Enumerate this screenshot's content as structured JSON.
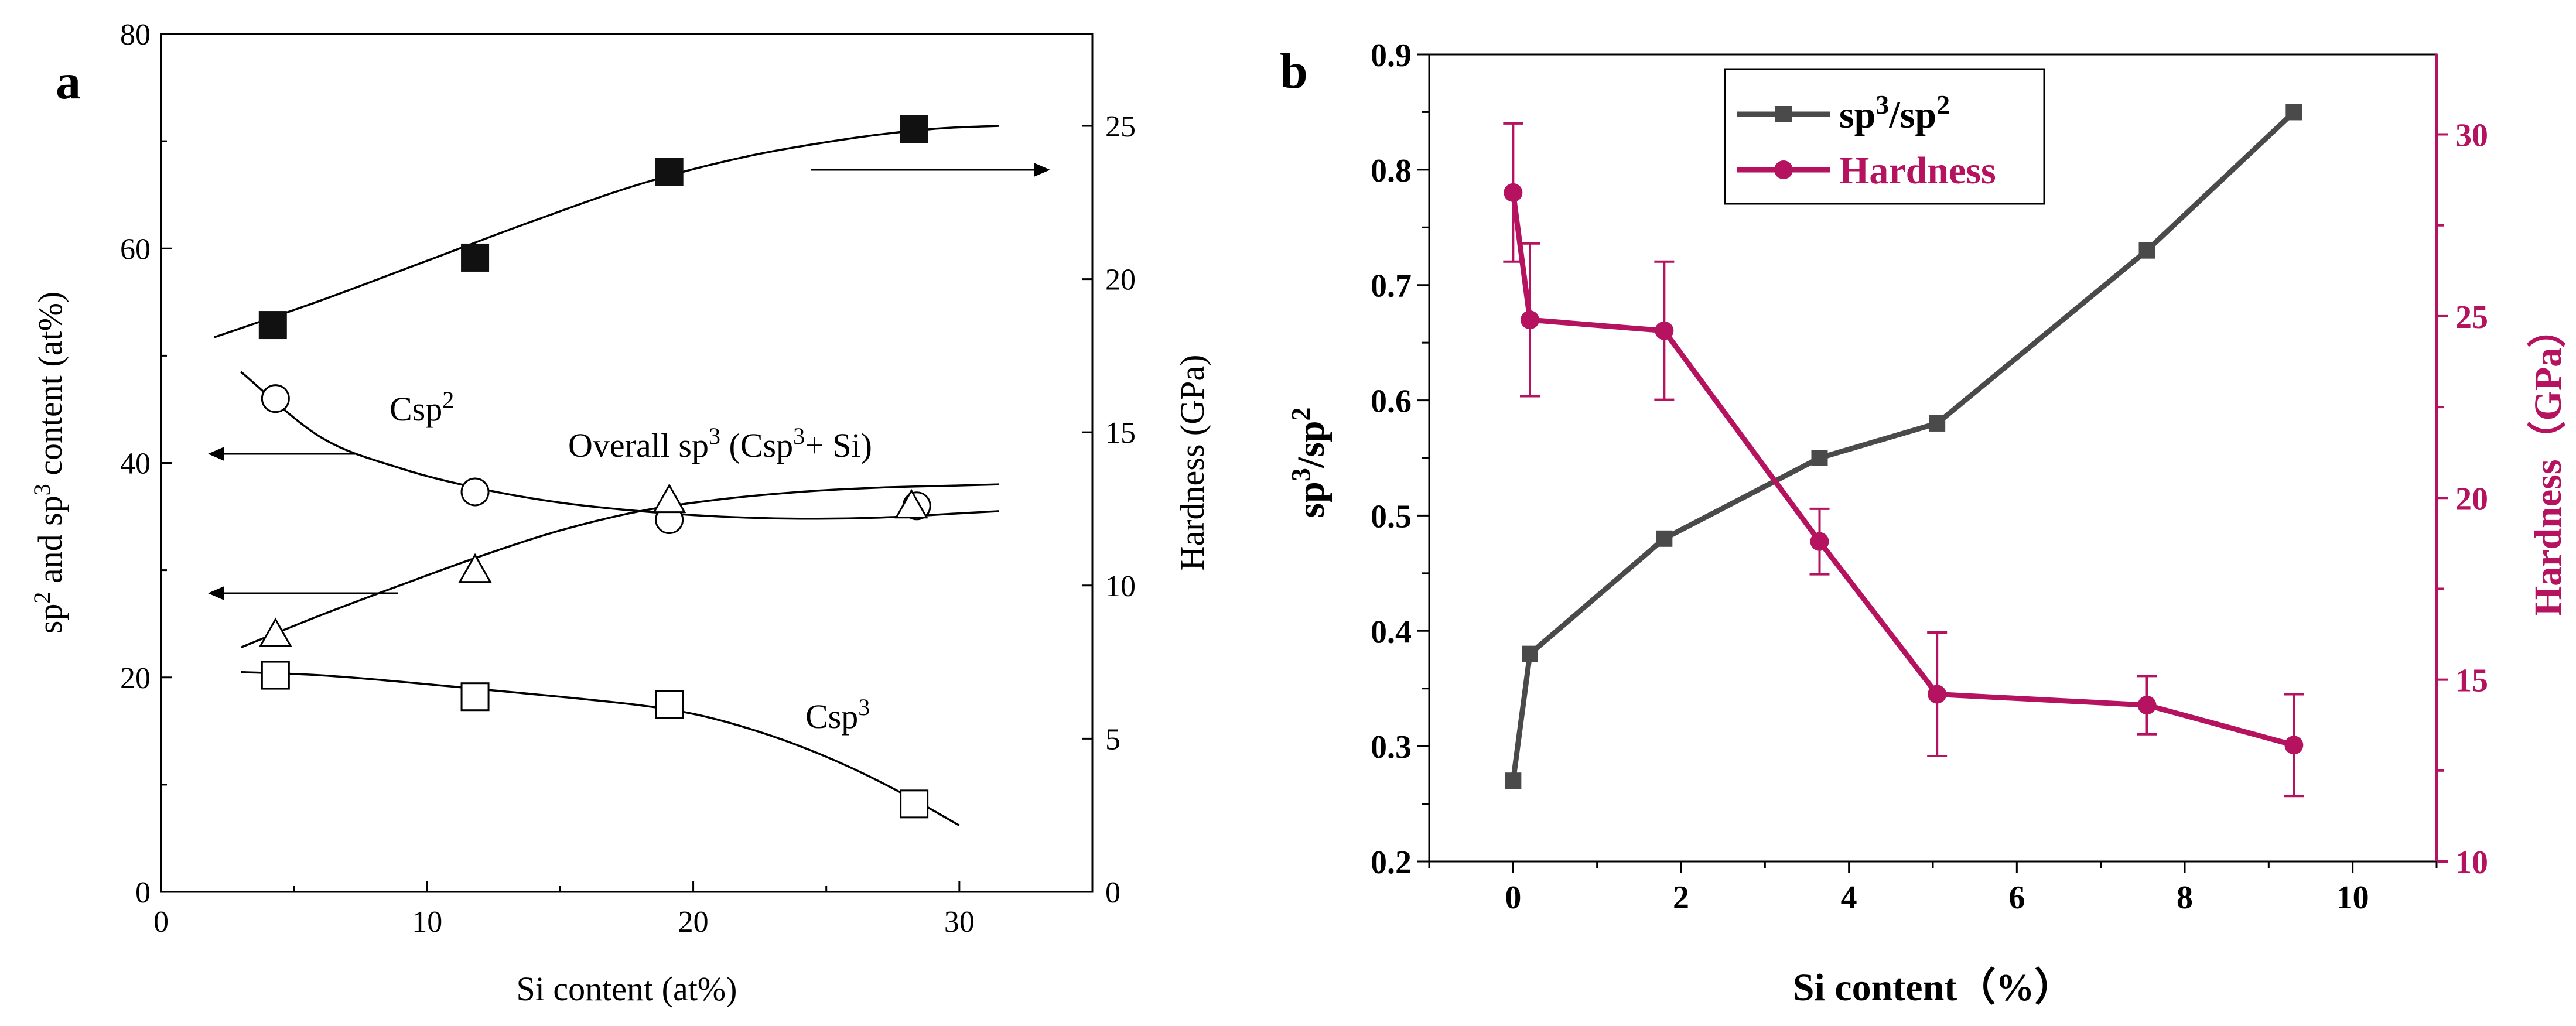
{
  "chart_data": [
    {
      "type": "scatter",
      "panel_label": "a",
      "xlabel": "Si content (at%)",
      "ylabel_left": {
        "pre": "sp",
        "sup1": "2",
        "mid": " and sp",
        "sup2": "3",
        "post": " content (at%)"
      },
      "ylabel_right": "Hardness (GPa)",
      "xlim": [
        0,
        35
      ],
      "ylim_left": [
        0,
        80
      ],
      "ylim_right": [
        0,
        28
      ],
      "x_ticks": [
        "0",
        "10",
        "20",
        "30"
      ],
      "y_ticks_left": [
        "0",
        "20",
        "40",
        "60",
        "80"
      ],
      "y_ticks_right": [
        "0",
        "5",
        "10",
        "15",
        "20",
        "25"
      ],
      "series": [
        {
          "name": "Hardness",
          "marker": "filled-square",
          "axis": "right",
          "x": [
            4.2,
            11.8,
            19.1,
            28.3
          ],
          "y": [
            18.5,
            20.7,
            23.5,
            24.9
          ],
          "fit_x": [
            2,
            6,
            10,
            14,
            18,
            22,
            26,
            29,
            31.5
          ],
          "fit_y": [
            18.1,
            19.3,
            20.6,
            21.9,
            23.1,
            24.0,
            24.6,
            24.9,
            25.0
          ]
        },
        {
          "name": "Csp2",
          "marker": "open-circle",
          "axis": "left",
          "x": [
            4.3,
            11.8,
            19.1,
            28.4
          ],
          "y": [
            46,
            37.3,
            34.7,
            36
          ],
          "fit_x": [
            3,
            6,
            9,
            12,
            15,
            18,
            21,
            24,
            27,
            30,
            31.5
          ],
          "fit_y": [
            48.5,
            42.4,
            39.5,
            37.6,
            36.3,
            35.5,
            35.0,
            34.8,
            34.9,
            35.3,
            35.5
          ]
        },
        {
          "name": "Overall sp3 (Csp3+ Si)",
          "marker": "open-triangle",
          "axis": "left",
          "x": [
            4.3,
            11.8,
            19.1,
            28.2
          ],
          "y": [
            24,
            30,
            36.5,
            36
          ],
          "fit_x": [
            3,
            6,
            9,
            12,
            15,
            18,
            21,
            24,
            27,
            30,
            31.5
          ],
          "fit_y": [
            22.8,
            25.8,
            28.6,
            31.3,
            33.7,
            35.5,
            36.6,
            37.3,
            37.7,
            37.9,
            38.0
          ]
        },
        {
          "name": "Csp3",
          "marker": "open-square",
          "axis": "left",
          "x": [
            4.3,
            11.8,
            19.1,
            28.3
          ],
          "y": [
            20.2,
            18.2,
            17.5,
            8.2
          ],
          "fit_x": [
            3,
            6,
            9,
            12,
            15,
            18,
            20,
            22,
            24,
            26,
            28,
            30
          ],
          "fit_y": [
            20.5,
            20.2,
            19.6,
            18.9,
            18.2,
            17.4,
            16.6,
            15.3,
            13.6,
            11.5,
            9.0,
            6.2
          ]
        }
      ],
      "annotations": [
        {
          "text": "Csp",
          "sup": "2",
          "near_series": "Csp2"
        },
        {
          "text": "Overall sp",
          "sup": "3",
          "post": " (Csp",
          "sup2": "3",
          "post2": "+ Si)",
          "near_series": "Overall sp3"
        },
        {
          "text": "Csp",
          "sup": "3",
          "near_series": "Csp3"
        },
        {
          "arrow": "right",
          "target_axis": "right",
          "series": "Hardness"
        },
        {
          "arrow": "left",
          "target_axis": "left",
          "series": "Csp2"
        },
        {
          "arrow": "left",
          "target_axis": "left",
          "series": "Overall sp3"
        }
      ]
    },
    {
      "type": "line",
      "panel_label": "b",
      "xlabel": "Si content（%）",
      "ylabel_left": {
        "pre": "sp",
        "sup1": "3",
        "mid": "/sp",
        "sup2": "2"
      },
      "ylabel_right": "Hardness（GPa）",
      "xlim": [
        -1,
        11
      ],
      "ylim_left": [
        0.2,
        0.9
      ],
      "ylim_right": [
        10,
        32.2
      ],
      "x_ticks": [
        "0",
        "2",
        "4",
        "6",
        "8",
        "10"
      ],
      "y_ticks_left": [
        "0.2",
        "0.3",
        "0.4",
        "0.5",
        "0.6",
        "0.7",
        "0.8",
        "0.9"
      ],
      "y_ticks_right": [
        "10",
        "15",
        "20",
        "25",
        "30"
      ],
      "legend_position": "top-left",
      "series": [
        {
          "name": "sp3/sp2",
          "legend": {
            "pre": "sp",
            "sup1": "3",
            "mid": "/sp",
            "sup2": "2"
          },
          "color": "#4a4a4a",
          "marker": "square",
          "axis": "left",
          "x": [
            0,
            0.2,
            1.8,
            3.65,
            5.05,
            7.55,
            9.3
          ],
          "y": [
            0.27,
            0.38,
            0.48,
            0.55,
            0.58,
            0.73,
            0.85
          ]
        },
        {
          "name": "Hardness",
          "legend": {
            "pre": "Hardness"
          },
          "color": "#b5135f",
          "marker": "circle",
          "axis": "right",
          "x": [
            0,
            0.2,
            1.8,
            3.65,
            5.05,
            7.55,
            9.3
          ],
          "y": [
            28.4,
            24.9,
            24.6,
            18.8,
            14.6,
            14.3,
            13.2
          ],
          "err": [
            1.9,
            2.1,
            1.9,
            0.9,
            1.7,
            0.8,
            1.4
          ]
        }
      ]
    }
  ]
}
